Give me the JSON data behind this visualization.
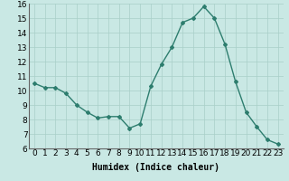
{
  "x": [
    0,
    1,
    2,
    3,
    4,
    5,
    6,
    7,
    8,
    9,
    10,
    11,
    12,
    13,
    14,
    15,
    16,
    17,
    18,
    19,
    20,
    21,
    22,
    23
  ],
  "y": [
    10.5,
    10.2,
    10.2,
    9.8,
    9.0,
    8.5,
    8.1,
    8.2,
    8.2,
    7.4,
    7.7,
    10.3,
    11.8,
    13.0,
    14.7,
    15.0,
    15.8,
    15.0,
    13.2,
    10.6,
    8.5,
    7.5,
    6.6,
    6.3
  ],
  "line_color": "#2d7d6e",
  "marker": "D",
  "marker_size": 2,
  "bg_color": "#c9e8e4",
  "grid_color": "#a8cfc8",
  "xlabel": "Humidex (Indice chaleur)",
  "xlim": [
    -0.5,
    23.5
  ],
  "ylim": [
    6,
    16
  ],
  "xticks": [
    0,
    1,
    2,
    3,
    4,
    5,
    6,
    7,
    8,
    9,
    10,
    11,
    12,
    13,
    14,
    15,
    16,
    17,
    18,
    19,
    20,
    21,
    22,
    23
  ],
  "yticks": [
    6,
    7,
    8,
    9,
    10,
    11,
    12,
    13,
    14,
    15,
    16
  ],
  "xlabel_fontsize": 7,
  "tick_fontsize": 6.5,
  "linewidth": 1.0
}
